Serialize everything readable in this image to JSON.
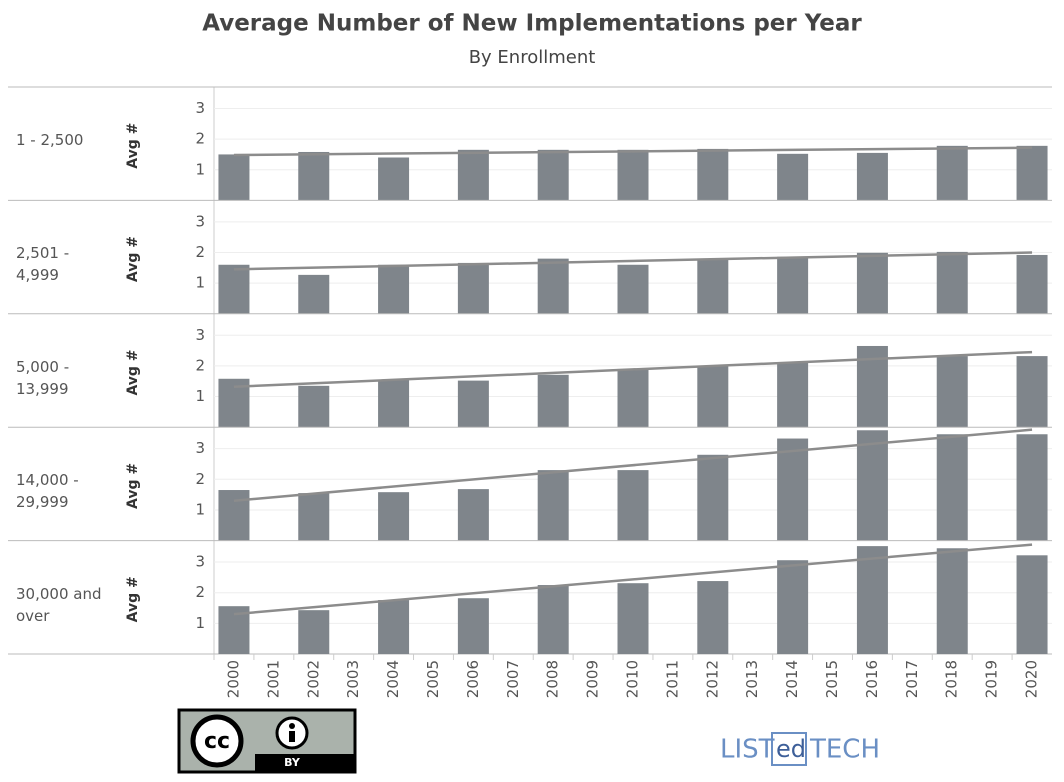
{
  "chart_data": {
    "type": "bar",
    "title": "Average Number of New Implementations per Year",
    "subtitle": "By Enrollment",
    "ylabel": "Avg #",
    "color": "#7f858b",
    "trend_color": "#8c8c8c",
    "grid": true,
    "ylim": [
      0,
      3.7
    ],
    "yticks": [
      1,
      2,
      3
    ],
    "categories": [
      "2000",
      "2001",
      "2002",
      "2003",
      "2004",
      "2005",
      "2006",
      "2007",
      "2008",
      "2009",
      "2010",
      "2011",
      "2012",
      "2013",
      "2014",
      "2015",
      "2016",
      "2017",
      "2018",
      "2019",
      "2020"
    ],
    "panels": [
      {
        "name": "1 - 2,500",
        "values": [
          1.5,
          null,
          1.58,
          null,
          1.4,
          null,
          1.65,
          null,
          1.65,
          null,
          1.65,
          null,
          1.68,
          null,
          1.52,
          null,
          1.55,
          null,
          1.78,
          null,
          1.78
        ],
        "trendline": [
          1.48,
          1.72
        ]
      },
      {
        "name": "2,501 - 4,999",
        "values": [
          1.6,
          null,
          1.27,
          null,
          1.6,
          null,
          1.66,
          null,
          1.8,
          null,
          1.6,
          null,
          1.76,
          null,
          1.86,
          null,
          1.99,
          null,
          2.02,
          null,
          1.92
        ],
        "trendline": [
          1.45,
          2.0
        ]
      },
      {
        "name": "5,000 - 13,999",
        "values": [
          1.58,
          null,
          1.35,
          null,
          1.55,
          null,
          1.52,
          null,
          1.71,
          null,
          1.9,
          null,
          2.0,
          null,
          2.1,
          null,
          2.65,
          null,
          2.32,
          null,
          2.32
        ],
        "trendline": [
          1.32,
          2.45
        ]
      },
      {
        "name": "14,000 - 29,999",
        "values": [
          1.65,
          null,
          1.55,
          null,
          1.58,
          null,
          1.68,
          null,
          2.3,
          null,
          2.3,
          null,
          2.8,
          null,
          3.33,
          null,
          3.6,
          null,
          3.47,
          null,
          3.47
        ],
        "trendline": [
          1.3,
          3.62
        ]
      },
      {
        "name": "30,000 and over",
        "values": [
          1.56,
          null,
          1.43,
          null,
          1.76,
          null,
          1.82,
          null,
          2.25,
          null,
          2.31,
          null,
          2.38,
          null,
          3.06,
          null,
          3.52,
          null,
          3.45,
          null,
          3.22
        ],
        "trendline": [
          1.3,
          3.57
        ]
      }
    ]
  },
  "footer": {
    "license_icon": "cc",
    "license": "BY",
    "brand_left": "LIST",
    "brand_mid": "ed",
    "brand_right": "TECH"
  }
}
